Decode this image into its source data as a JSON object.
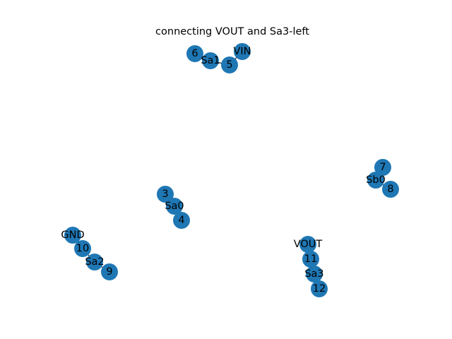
{
  "title": "connecting VOUT and Sa3-left",
  "node_color": "#1f77b4",
  "edge_color": "#000000",
  "nodes": [
    {
      "id": "6",
      "label": "6"
    },
    {
      "id": "Sa1",
      "label": "Sa1"
    },
    {
      "id": "5",
      "label": "5"
    },
    {
      "id": "VIN",
      "label": "VIN"
    },
    {
      "id": "7",
      "label": "7"
    },
    {
      "id": "Sb0",
      "label": "Sb0"
    },
    {
      "id": "8",
      "label": "8"
    },
    {
      "id": "3",
      "label": "3"
    },
    {
      "id": "Sa0",
      "label": "Sa0"
    },
    {
      "id": "4",
      "label": "4"
    },
    {
      "id": "GND",
      "label": "GND"
    },
    {
      "id": "10",
      "label": "10"
    },
    {
      "id": "Sa2",
      "label": "Sa2"
    },
    {
      "id": "9",
      "label": "9"
    },
    {
      "id": "VOUT",
      "label": "VOUT"
    },
    {
      "id": "11",
      "label": "11"
    },
    {
      "id": "Sa3",
      "label": "Sa3"
    },
    {
      "id": "12",
      "label": "12"
    }
  ],
  "edges": [
    [
      "6",
      "Sa1"
    ],
    [
      "Sa1",
      "5"
    ],
    [
      "5",
      "VIN"
    ],
    [
      "7",
      "Sb0"
    ],
    [
      "Sb0",
      "8"
    ],
    [
      "3",
      "Sa0"
    ],
    [
      "Sa0",
      "4"
    ],
    [
      "GND",
      "10"
    ],
    [
      "10",
      "Sa2"
    ],
    [
      "Sa2",
      "9"
    ],
    [
      "VOUT",
      "11"
    ],
    [
      "11",
      "Sa3"
    ],
    [
      "Sa3",
      "12"
    ]
  ]
}
